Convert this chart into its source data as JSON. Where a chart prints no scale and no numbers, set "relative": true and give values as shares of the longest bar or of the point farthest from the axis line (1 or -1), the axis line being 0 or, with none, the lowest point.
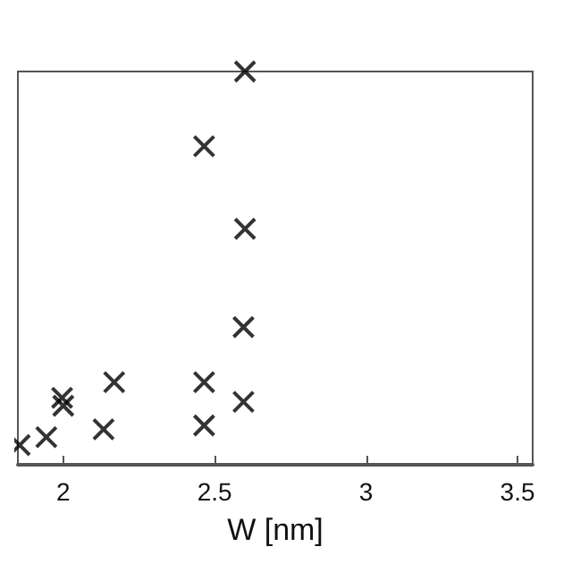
{
  "chart_data": {
    "type": "scatter",
    "xlabel": "W [nm]",
    "relative": true,
    "marker": "cross",
    "color": "#000000",
    "x": [
      1.856,
      1.944,
      1.996,
      2.0,
      2.133,
      2.168,
      2.465,
      2.465,
      2.465,
      2.6,
      2.6,
      2.595,
      2.595
    ],
    "values": [
      0.05,
      0.07,
      0.17,
      0.15,
      0.09,
      0.21,
      0.81,
      0.21,
      0.1,
      1.0,
      0.6,
      0.35,
      0.16
    ],
    "xlim": [
      1.85,
      3.55
    ],
    "xticks": [
      2,
      2.5,
      3,
      3.5
    ],
    "tick_labels": "x",
    "grid": false
  }
}
